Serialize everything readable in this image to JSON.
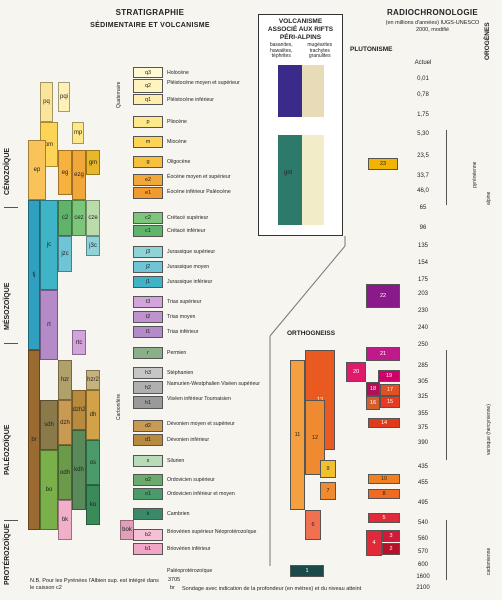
{
  "header": {
    "strat_title": "STRATIGRAPHIE",
    "strat_sub": "SÉDIMENTAIRE ET VOLCANISME",
    "volc_title": "VOLCANISME ASSOCIÉ AUX RIFTS PÉRI-ALPINS",
    "volc_sub_left": "basanites, hawaiites, téphrites",
    "volc_sub_right": "mugéarites trachytes granulites",
    "radio_title": "RADIOCHRONOLOGIE",
    "radio_sub": "(en millions d'années) IUGS-UNESCO 2000, modifié",
    "plutonisme": "PLUTONISME",
    "orthogneiss": "ORTHOGNEISS",
    "orogenes": "OROGÈNES"
  },
  "eras": [
    "CÉNOZOÏQUE",
    "MÉSOZOÏQUE",
    "PALÉOZOÏQUE",
    "PROTÉROZOÏQUE"
  ],
  "quaternaire": "Quaternaire",
  "carbonifere": "Carbonifère",
  "legend_rows": [
    {
      "code": "q3",
      "label": "Holocène"
    },
    {
      "code": "q2",
      "label": "Pléistocène moyen et supérieur"
    },
    {
      "code": "q1",
      "label": "Pléistocène inférieur"
    },
    {
      "code": "p",
      "label": "Pliocène"
    },
    {
      "code": "m",
      "label": "Miocène"
    },
    {
      "code": "g",
      "label": "Oligocène"
    },
    {
      "code": "e2",
      "label": "Éocène moyen et supérieur"
    },
    {
      "code": "e1",
      "label": "Éocène inférieur Paléocène"
    },
    {
      "code": "c2",
      "label": "Crétacé supérieur"
    },
    {
      "code": "c1",
      "label": "Crétacé inférieur"
    },
    {
      "code": "j3",
      "label": "Jurassique supérieur"
    },
    {
      "code": "j2",
      "label": "Jurassique moyen"
    },
    {
      "code": "j1",
      "label": "Jurassique inférieur"
    },
    {
      "code": "t3",
      "label": "Trias supérieur"
    },
    {
      "code": "t2",
      "label": "Trias moyen"
    },
    {
      "code": "t1",
      "label": "Trias inférieur"
    },
    {
      "code": "r",
      "label": "Permien"
    },
    {
      "code": "h3",
      "label": "Stéphanien"
    },
    {
      "code": "h2",
      "label": "Namurien-Westphalien Viséen supérieur"
    },
    {
      "code": "h1",
      "label": "Viséen inférieur Tournaisien"
    },
    {
      "code": "d2",
      "label": "Dévonien moyen et supérieur"
    },
    {
      "code": "d1",
      "label": "Dévonien inférieur"
    },
    {
      "code": "s",
      "label": "Silurien"
    },
    {
      "code": "o2",
      "label": "Ordovicien supérieur"
    },
    {
      "code": "o1",
      "label": "Ordovicien inférieur et moyen"
    },
    {
      "code": "k",
      "label": "Cambrien"
    },
    {
      "code": "b2",
      "label": "Briovérien supérieur Néoprotérozoïque"
    },
    {
      "code": "b1",
      "label": "Briovérien inférieur"
    },
    {
      "code": "",
      "label": "Paléoprotérozoïque"
    }
  ],
  "ages": [
    "Actuel",
    "0,01",
    "0,78",
    "1,75",
    "5,30",
    "23,5",
    "33,7",
    "46,0",
    "65",
    "96",
    "135",
    "154",
    "175",
    "203",
    "230",
    "240",
    "250",
    "285",
    "305",
    "325",
    "355",
    "375",
    "390",
    "435",
    "455",
    "495",
    "540",
    "560",
    "570",
    "600",
    "1600",
    "2100"
  ],
  "plutonism_codes": [
    "23",
    "22",
    "21",
    "20",
    "19",
    "18",
    "17",
    "16",
    "15",
    "14",
    "10",
    "8",
    "5",
    "4",
    "3",
    "2",
    "1"
  ],
  "orthogneiss_codes": [
    "13",
    "12",
    "11",
    "9",
    "7",
    "6"
  ],
  "orogenes": [
    "alpine",
    "pyrénéenne",
    "varisque (hercynienne)",
    "cadomienne"
  ],
  "footnote": "N.B. Pour les Pyrénées l'Albien sup. est intégré dans le caisson c2",
  "sondage_value": "3705",
  "sondage_code": "br",
  "sondage_text": "Sondage avec indication de la profondeur (en mètres) et du niveau atteint",
  "left_codes": [
    "pq",
    "pqi",
    "mp",
    "om",
    "eg",
    "ep",
    "gm",
    "ezg",
    "cez",
    "cze",
    "c2",
    "j3c",
    "jzc",
    "jc",
    "tj",
    "rt",
    "rtc",
    "hzr",
    "hzr2",
    "dzh",
    "dh",
    "dzh2",
    "br",
    "sdh",
    "odh",
    "kdh",
    "os",
    "bo",
    "ko",
    "bk",
    "bok"
  ]
}
